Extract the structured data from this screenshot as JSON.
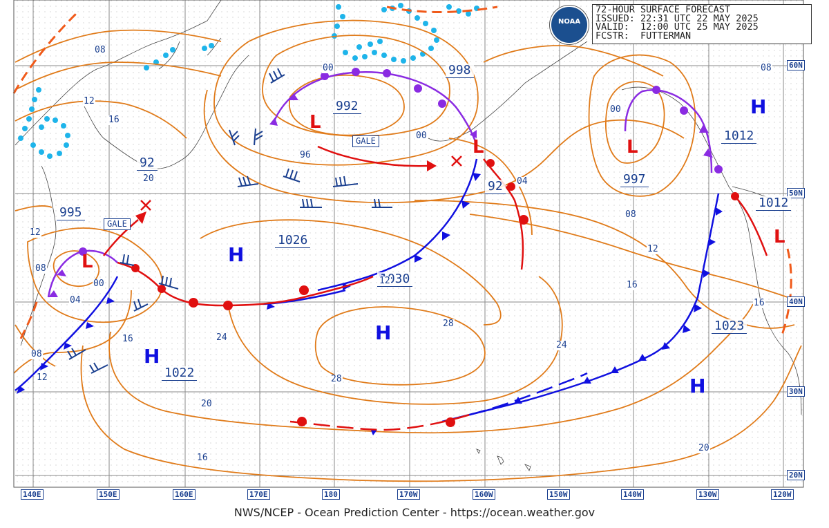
{
  "header": {
    "title": "72-HOUR SURFACE FORECAST",
    "issued": "ISSUED: 22:31 UTC 22 MAY 2025",
    "valid": "VALID:  12:00 UTC 25 MAY 2025",
    "forecaster": "FCSTR:  FUTTERMAN",
    "logo_text": "NOAA"
  },
  "footer": "NWS/NCEP - Ocean Prediction Center - https://ocean.weather.gov",
  "longitude_labels": [
    "140E",
    "150E",
    "160E",
    "170E",
    "180",
    "170W",
    "160W",
    "150W",
    "140W",
    "130W",
    "120W"
  ],
  "latitude_labels": [
    "60N",
    "50N",
    "40N",
    "30N",
    "20N"
  ],
  "pressure_centers": [
    {
      "type": "H",
      "value": "1026"
    },
    {
      "type": "H",
      "value": "1030"
    },
    {
      "type": "H",
      "value": "1022"
    },
    {
      "type": "H",
      "value": "1023"
    },
    {
      "type": "H",
      "value": "1012"
    },
    {
      "type": "H",
      "value": ""
    },
    {
      "type": "L",
      "value": "992"
    },
    {
      "type": "L",
      "value": "998"
    },
    {
      "type": "L",
      "value": "997"
    },
    {
      "type": "L",
      "value": "995"
    },
    {
      "type": "L",
      "value": "1012"
    }
  ],
  "pressure_labels_extra": [
    "92",
    "92"
  ],
  "warnings": [
    "GALE",
    "GALE"
  ],
  "isobar_labels": [
    "08",
    "12",
    "16",
    "20",
    "12",
    "08",
    "04",
    "00",
    "08",
    "12",
    "00",
    "96",
    "00",
    "04",
    "00",
    "08",
    "12",
    "16",
    "08",
    "16",
    "24",
    "28",
    "28",
    "24",
    "20",
    "16",
    "20",
    "16",
    "12"
  ],
  "colors": {
    "isobar": "#e07b1a",
    "cold_front": "#1010e0",
    "warm_front": "#e01010",
    "occluded_front": "#8a2be2",
    "label": "#1a3f8f",
    "ice": "#1eb4ea",
    "coast": "#333333",
    "grid": "#999999"
  }
}
